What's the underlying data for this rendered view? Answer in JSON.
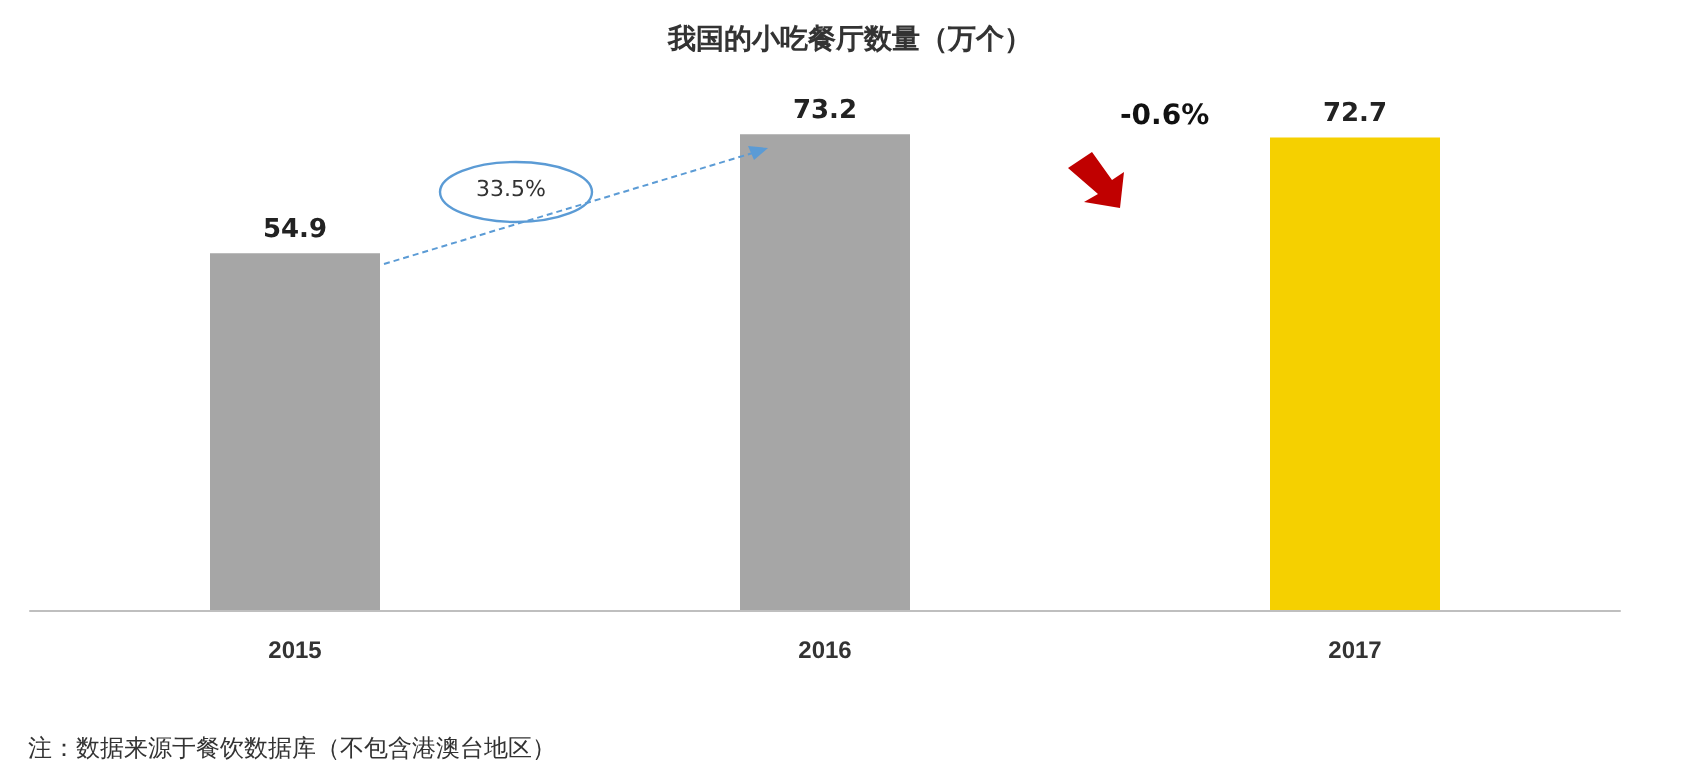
{
  "chart_data": {
    "type": "bar",
    "title": "我国的小吃餐厅数量（万个）",
    "categories": [
      "2015",
      "2016",
      "2017"
    ],
    "values": [
      54.9,
      73.2,
      72.7
    ],
    "colors": [
      "#a6a6a6",
      "#a6a6a6",
      "#f5d000"
    ],
    "data_labels": true,
    "annotations": [
      "33.5%",
      "-0.6%",
      "注：数据来源于餐饮数据库（不包含港澳台地区）"
    ]
  }
}
